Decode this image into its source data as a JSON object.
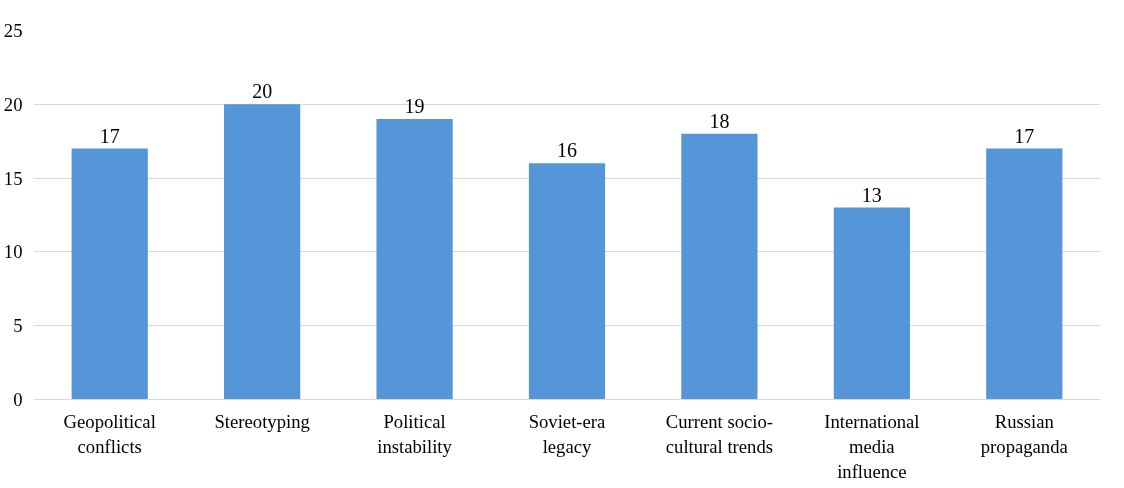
{
  "chart_data": {
    "type": "bar",
    "categories": [
      "Geopolitical\nconflicts",
      "Stereotyping",
      "Political\ninstability",
      "Soviet-era\nlegacy",
      "Current socio-\ncultural trends",
      "International\nmedia\ninfluence",
      "Russian\npropaganda"
    ],
    "values": [
      17,
      20,
      19,
      16,
      18,
      13,
      17
    ],
    "color": "#5496d8",
    "ylim": [
      0,
      25
    ],
    "yticks": [
      0,
      5,
      10,
      15,
      20,
      25
    ],
    "grid": "y",
    "data_labels": true
  }
}
